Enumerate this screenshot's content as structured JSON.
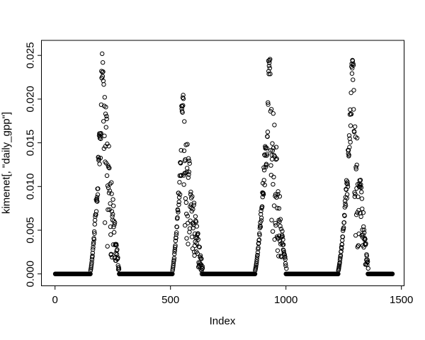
{
  "chart_data": {
    "type": "scatter",
    "title": "",
    "xlabel": "Index",
    "ylabel": "kimenet[, \"daily_gpp\"]",
    "marker": "open-circle",
    "marker_color": "#000000",
    "background_color": "#ffffff",
    "grid": false,
    "legend": null,
    "x_axis": {
      "tick_values": [
        0,
        500,
        1000,
        1500
      ],
      "tick_labels": [
        "0",
        "500",
        "1000",
        "1500"
      ],
      "range_shown": [
        -57,
        1519
      ]
    },
    "y_axis": {
      "tick_values": [
        0.0,
        0.005,
        0.01,
        0.015,
        0.02,
        0.025
      ],
      "tick_labels": [
        "0.000",
        "0.005",
        "0.010",
        "0.015",
        "0.020",
        "0.025"
      ],
      "range_shown": [
        -0.0013,
        0.0266
      ]
    },
    "n_points": 1461,
    "baseline_value": 0,
    "pattern": "Daily GPP time series over four annual cycles: long runs of exact zeros (dense black band at y=0) interrupted by four noisy bell-shaped growing-season peaks with steep rises and scattered declines.",
    "seasons": [
      {
        "rise_start": 150,
        "peak_index": 205,
        "fall_end": 280,
        "peak_value": 0.0255
      },
      {
        "rise_start": 505,
        "peak_index": 552,
        "fall_end": 645,
        "peak_value": 0.0205
      },
      {
        "rise_start": 862,
        "peak_index": 928,
        "fall_end": 1005,
        "peak_value": 0.0256
      },
      {
        "rise_start": 1222,
        "peak_index": 1288,
        "fall_end": 1360,
        "peak_value": 0.0245
      }
    ]
  }
}
